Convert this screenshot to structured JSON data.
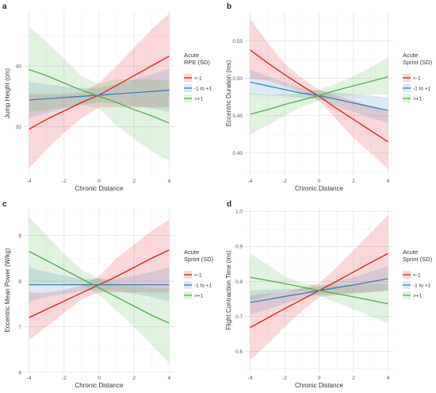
{
  "chart_data": [
    {
      "panel_tag": "a",
      "type": "line",
      "xlabel": "Chronic Distance",
      "ylabel": "Jump Height (cm)",
      "xlim": [
        -4.3,
        4.3
      ],
      "ylim": [
        31.0,
        44.5
      ],
      "x_ticks": [
        -4,
        -2,
        0,
        2,
        4
      ],
      "y_ticks": [
        35,
        40
      ],
      "legend_title": [
        "Acute",
        "RPE (SD)"
      ],
      "grid": true,
      "series": [
        {
          "name": "<-1",
          "color": "#e41a1c",
          "x": [
            -4,
            -3,
            -2,
            -1,
            0,
            1,
            2,
            3,
            4
          ],
          "values": [
            34.8,
            35.6,
            36.3,
            37.0,
            37.6,
            38.4,
            39.2,
            40.0,
            40.8
          ],
          "lower": [
            31.6,
            33.1,
            34.5,
            35.7,
            36.6,
            36.6,
            36.6,
            36.6,
            36.6
          ],
          "upper": [
            37.7,
            37.7,
            37.7,
            37.8,
            38.6,
            40.0,
            41.5,
            43.0,
            44.3
          ]
        },
        {
          "name": "-1 to +1",
          "color": "#377eb8",
          "x": [
            -4,
            -3,
            -2,
            -1,
            0,
            1,
            2,
            3,
            4
          ],
          "values": [
            37.2,
            37.3,
            37.4,
            37.5,
            37.6,
            37.7,
            37.8,
            37.9,
            38.0
          ],
          "lower": [
            35.7,
            36.1,
            36.5,
            36.8,
            37.0,
            36.9,
            36.7,
            36.5,
            36.2
          ],
          "upper": [
            38.7,
            38.5,
            38.3,
            38.2,
            38.2,
            38.5,
            38.9,
            39.3,
            39.8
          ]
        },
        {
          "name": ">+1",
          "color": "#4daf4a",
          "x": [
            -4,
            -3,
            -2,
            -1,
            0,
            1,
            2,
            3,
            4
          ],
          "values": [
            39.7,
            39.2,
            38.6,
            38.0,
            37.5,
            37.0,
            36.4,
            35.9,
            35.3
          ],
          "lower": [
            36.2,
            36.4,
            36.6,
            36.8,
            36.5,
            35.1,
            34.0,
            33.0,
            32.2
          ],
          "upper": [
            43.2,
            42.0,
            40.6,
            39.2,
            38.5,
            38.9,
            38.9,
            38.9,
            38.8
          ]
        }
      ]
    },
    {
      "panel_tag": "b",
      "type": "line",
      "xlabel": "Chronic Distance",
      "ylabel": "Eccentric Duration (ms)",
      "xlim": [
        -4.3,
        4.3
      ],
      "ylim": [
        0.37,
        0.59
      ],
      "x_ticks": [
        -4,
        -2,
        0,
        2,
        4
      ],
      "y_ticks": [
        0.4,
        0.45,
        0.5,
        0.55
      ],
      "y_tick_labels": [
        "0.40",
        "0.45",
        "0.50",
        "0.55"
      ],
      "legend_title": [
        "Acute",
        "Sprint (SD)"
      ],
      "grid": true,
      "series": [
        {
          "name": "<-1",
          "color": "#e41a1c",
          "x": [
            -4,
            -3,
            -2,
            -1,
            0,
            1,
            2,
            3,
            4
          ],
          "values": [
            0.538,
            0.521,
            0.505,
            0.49,
            0.476,
            0.46,
            0.445,
            0.43,
            0.415
          ],
          "lower": [
            0.5,
            0.497,
            0.49,
            0.481,
            0.47,
            0.445,
            0.42,
            0.4,
            0.378
          ],
          "upper": [
            0.58,
            0.548,
            0.52,
            0.5,
            0.485,
            0.477,
            0.47,
            0.462,
            0.455
          ]
        },
        {
          "name": "-1 to +1",
          "color": "#377eb8",
          "x": [
            -4,
            -3,
            -2,
            -1,
            0,
            1,
            2,
            3,
            4
          ],
          "values": [
            0.495,
            0.49,
            0.485,
            0.48,
            0.477,
            0.472,
            0.467,
            0.462,
            0.457
          ],
          "lower": [
            0.478,
            0.477,
            0.476,
            0.474,
            0.472,
            0.463,
            0.455,
            0.447,
            0.44
          ],
          "upper": [
            0.512,
            0.503,
            0.495,
            0.487,
            0.483,
            0.481,
            0.479,
            0.477,
            0.474
          ]
        },
        {
          "name": ">+1",
          "color": "#4daf4a",
          "x": [
            -4,
            -3,
            -2,
            -1,
            0,
            1,
            2,
            3,
            4
          ],
          "values": [
            0.452,
            0.458,
            0.465,
            0.471,
            0.477,
            0.484,
            0.49,
            0.496,
            0.502
          ],
          "lower": [
            0.425,
            0.437,
            0.45,
            0.462,
            0.47,
            0.475,
            0.477,
            0.478,
            0.478
          ],
          "upper": [
            0.48,
            0.478,
            0.479,
            0.48,
            0.485,
            0.493,
            0.503,
            0.515,
            0.528
          ]
        }
      ]
    },
    {
      "panel_tag": "c",
      "type": "line",
      "xlabel": "Chronic Distance",
      "ylabel": "Eccentric Mean Power (W/kg)",
      "xlim": [
        -4.3,
        4.3
      ],
      "ylim": [
        6.0,
        9.6
      ],
      "x_ticks": [
        -4,
        -2,
        0,
        2,
        4
      ],
      "y_ticks": [
        6,
        7,
        8,
        9
      ],
      "legend_title": [
        "Acute",
        "Sprint (SD)"
      ],
      "grid": true,
      "series": [
        {
          "name": "<-1",
          "color": "#e41a1c",
          "x": [
            -4,
            -3,
            -2,
            -1,
            0,
            1,
            2,
            3,
            4
          ],
          "values": [
            7.2,
            7.38,
            7.56,
            7.74,
            7.92,
            8.1,
            8.3,
            8.5,
            8.68
          ],
          "lower": [
            6.7,
            7.0,
            7.3,
            7.6,
            7.75,
            7.75,
            7.75,
            7.75,
            7.75
          ],
          "upper": [
            7.75,
            7.75,
            7.8,
            7.9,
            8.1,
            8.5,
            8.8,
            9.1,
            9.35
          ]
        },
        {
          "name": "-1 to +1",
          "color": "#377eb8",
          "x": [
            -4,
            -3,
            -2,
            -1,
            0,
            1,
            2,
            3,
            4
          ],
          "values": [
            7.92,
            7.92,
            7.92,
            7.92,
            7.92,
            7.92,
            7.92,
            7.92,
            7.92
          ],
          "lower": [
            7.55,
            7.65,
            7.72,
            7.78,
            7.8,
            7.78,
            7.72,
            7.65,
            7.55
          ],
          "upper": [
            8.3,
            8.2,
            8.12,
            8.05,
            8.05,
            8.05,
            8.12,
            8.2,
            8.3
          ]
        },
        {
          "name": ">+1",
          "color": "#4daf4a",
          "x": [
            -4,
            -3,
            -2,
            -1,
            0,
            1,
            2,
            3,
            4
          ],
          "values": [
            8.65,
            8.45,
            8.25,
            8.05,
            7.85,
            7.65,
            7.45,
            7.25,
            7.08
          ],
          "lower": [
            7.9,
            7.95,
            7.95,
            7.9,
            7.7,
            7.35,
            7.0,
            6.6,
            6.2
          ],
          "upper": [
            9.4,
            9.0,
            8.6,
            8.25,
            8.05,
            7.95,
            7.9,
            7.85,
            7.85
          ]
        }
      ]
    },
    {
      "panel_tag": "d",
      "type": "line",
      "xlabel": "Chronic Distance",
      "ylabel": "Flight:Contraction Time (ms)",
      "xlim": [
        -4.3,
        4.3
      ],
      "ylim": [
        0.54,
        1.01
      ],
      "x_ticks": [
        -4,
        -2,
        0,
        2,
        4
      ],
      "y_ticks": [
        0.6,
        0.7,
        0.8,
        0.9,
        1.0
      ],
      "y_tick_labels": [
        "0.6",
        "0.7",
        "0.8",
        "0.9",
        "1.0"
      ],
      "legend_title": [
        "Acute",
        "Sprint (SD)"
      ],
      "grid": true,
      "series": [
        {
          "name": "<-1",
          "color": "#e41a1c",
          "x": [
            -4,
            -3,
            -2,
            -1,
            0,
            1,
            2,
            3,
            4
          ],
          "values": [
            0.668,
            0.695,
            0.722,
            0.748,
            0.774,
            0.8,
            0.827,
            0.854,
            0.88
          ],
          "lower": [
            0.575,
            0.62,
            0.67,
            0.715,
            0.755,
            0.76,
            0.765,
            0.77,
            0.775
          ],
          "upper": [
            0.76,
            0.765,
            0.77,
            0.78,
            0.795,
            0.84,
            0.89,
            0.94,
            0.99
          ]
        },
        {
          "name": "-1 to +1",
          "color": "#377eb8",
          "x": [
            -4,
            -3,
            -2,
            -1,
            0,
            1,
            2,
            3,
            4
          ],
          "values": [
            0.74,
            0.748,
            0.757,
            0.765,
            0.774,
            0.782,
            0.79,
            0.799,
            0.808
          ],
          "lower": [
            0.705,
            0.72,
            0.737,
            0.75,
            0.762,
            0.765,
            0.768,
            0.77,
            0.772
          ],
          "upper": [
            0.775,
            0.776,
            0.777,
            0.78,
            0.786,
            0.799,
            0.812,
            0.828,
            0.844
          ]
        },
        {
          "name": ">+1",
          "color": "#4daf4a",
          "x": [
            -4,
            -3,
            -2,
            -1,
            0,
            1,
            2,
            3,
            4
          ],
          "values": [
            0.812,
            0.803,
            0.794,
            0.784,
            0.774,
            0.765,
            0.756,
            0.746,
            0.736
          ],
          "lower": [
            0.745,
            0.76,
            0.772,
            0.772,
            0.76,
            0.74,
            0.72,
            0.7,
            0.68
          ],
          "upper": [
            0.88,
            0.848,
            0.815,
            0.796,
            0.788,
            0.79,
            0.792,
            0.793,
            0.793
          ]
        }
      ]
    }
  ]
}
